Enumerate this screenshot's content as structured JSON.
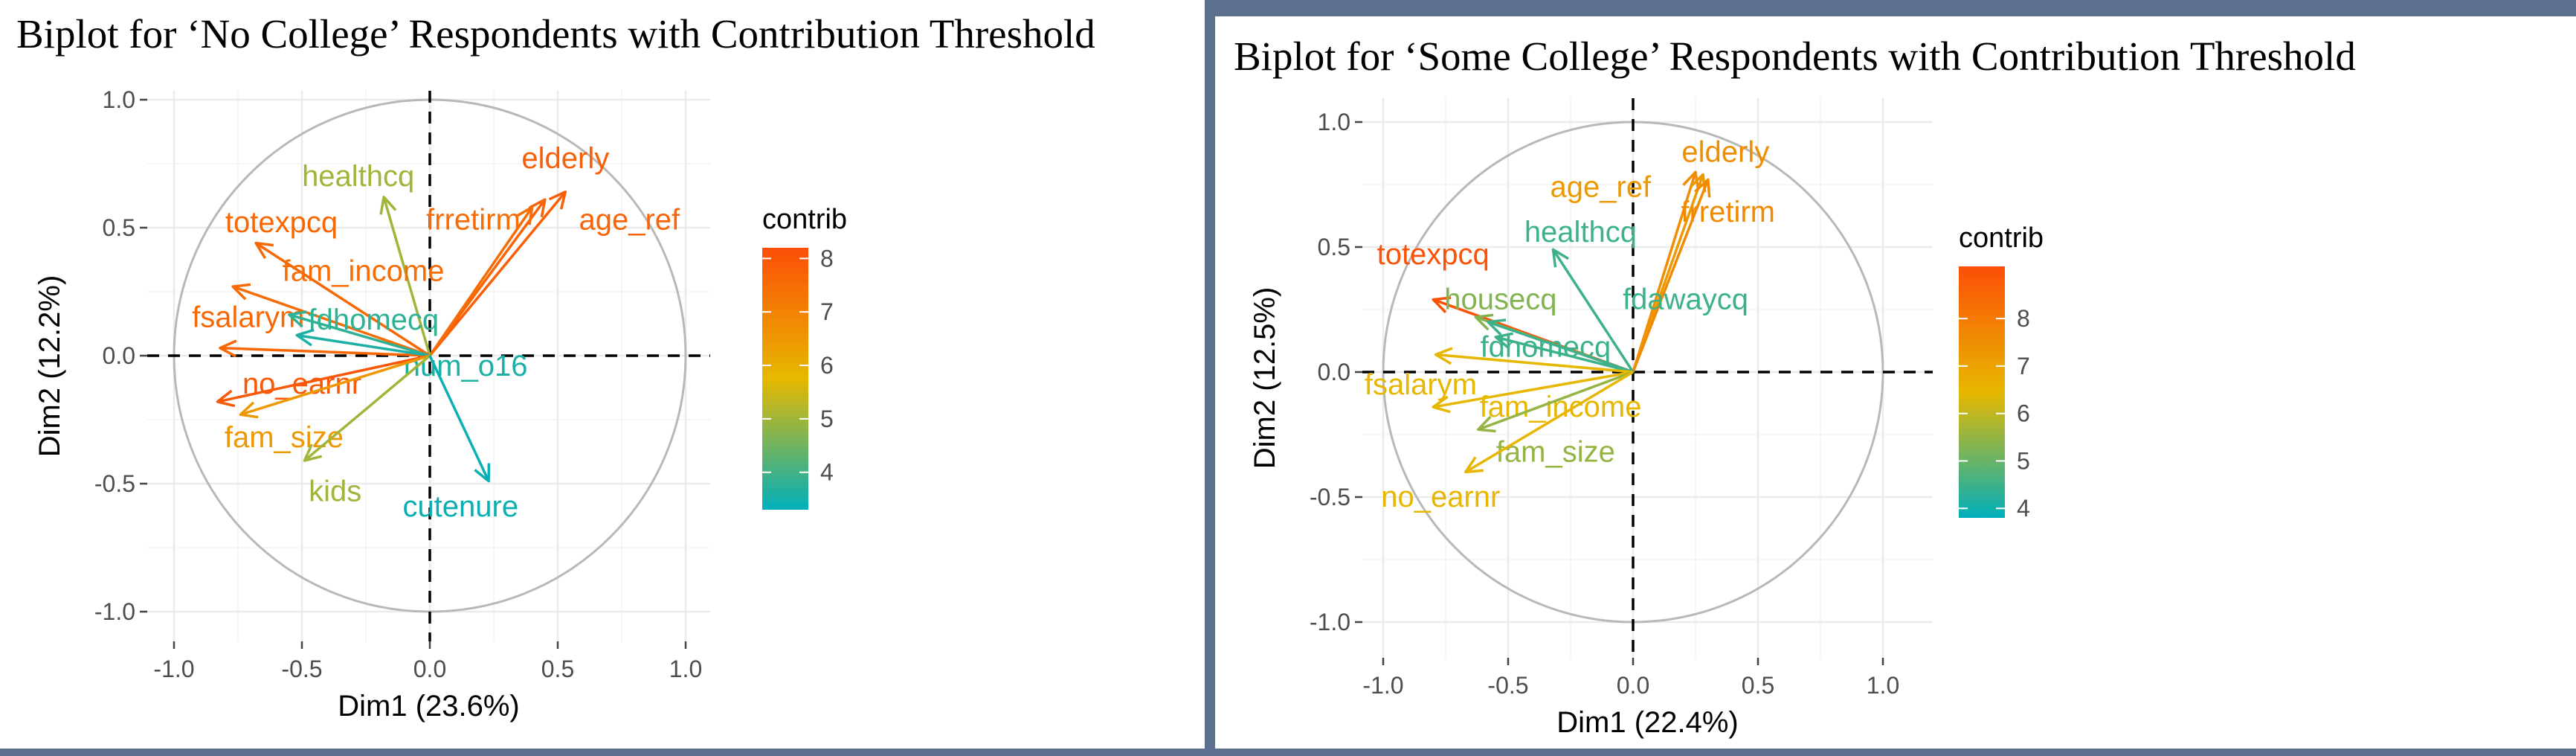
{
  "chart_data": [
    {
      "type": "biplot",
      "title": "Biplot for ‘No College’ Respondents with Contribution Threshold",
      "xlabel": "Dim1 (23.6%)",
      "ylabel": "Dim2 (12.2%)",
      "xlim": [
        -1.1,
        1.1
      ],
      "ylim": [
        -1.1,
        1.1
      ],
      "xticks": [
        "-1.0",
        "-0.5",
        "0.0",
        "0.5",
        "1.0"
      ],
      "yticks": [
        "-1.0",
        "-0.5",
        "0.0",
        "0.5",
        "1.0"
      ],
      "grid": true,
      "legend": {
        "title": "contrib",
        "position": "right",
        "range": [
          3.3,
          8.2
        ],
        "ticks": [
          "4",
          "5",
          "6",
          "7",
          "8"
        ]
      },
      "color_scale": [
        "#00afbb",
        "#e7b800",
        "#fc4e07"
      ],
      "vectors": [
        {
          "name": "elderly",
          "x": 0.53,
          "y": 0.64,
          "contrib": 7.8
        },
        {
          "name": "age_ref",
          "x": 0.45,
          "y": 0.61,
          "contrib": 7.7
        },
        {
          "name": "frretirm",
          "x": 0.4,
          "y": 0.58,
          "contrib": 7.5
        },
        {
          "name": "healthcq",
          "x": -0.18,
          "y": 0.62,
          "contrib": 5.0
        },
        {
          "name": "totexpcq",
          "x": -0.68,
          "y": 0.44,
          "contrib": 7.6
        },
        {
          "name": "fam_income",
          "x": -0.77,
          "y": 0.27,
          "contrib": 7.5
        },
        {
          "name": "fsalarym",
          "x": -0.82,
          "y": 0.03,
          "contrib": 7.6
        },
        {
          "name": "fdhomecq",
          "x": -0.55,
          "y": 0.16,
          "contrib": 3.8
        },
        {
          "name": "num_o16",
          "x": -0.52,
          "y": 0.08,
          "contrib": 3.6
        },
        {
          "name": "no_earnr",
          "x": -0.83,
          "y": -0.18,
          "contrib": 8.0
        },
        {
          "name": "fam_size",
          "x": -0.74,
          "y": -0.23,
          "contrib": 6.5
        },
        {
          "name": "kids",
          "x": -0.49,
          "y": -0.41,
          "contrib": 5.0
        },
        {
          "name": "cutenure",
          "x": 0.23,
          "y": -0.49,
          "contrib": 3.4
        }
      ]
    },
    {
      "type": "biplot",
      "title": "Biplot for ‘Some College’ Respondents with Contribution Threshold",
      "xlabel": "Dim1 (22.4%)",
      "ylabel": "Dim2 (12.5%)",
      "xlim": [
        -1.1,
        1.1
      ],
      "ylim": [
        -1.1,
        1.1
      ],
      "xticks": [
        "-1.0",
        "-0.5",
        "0.0",
        "0.5",
        "1.0"
      ],
      "yticks": [
        "-1.0",
        "-0.5",
        "0.0",
        "0.5",
        "1.0"
      ],
      "grid": true,
      "legend": {
        "title": "contrib",
        "position": "right",
        "range": [
          3.8,
          9.1
        ],
        "ticks": [
          "4",
          "5",
          "6",
          "7",
          "8"
        ]
      },
      "color_scale": [
        "#00afbb",
        "#e7b800",
        "#fc4e07"
      ],
      "vectors": [
        {
          "name": "elderly",
          "x": 0.25,
          "y": 0.8,
          "contrib": 7.5
        },
        {
          "name": "age_ref",
          "x": 0.28,
          "y": 0.79,
          "contrib": 7.2
        },
        {
          "name": "frretirm",
          "x": 0.3,
          "y": 0.77,
          "contrib": 7.6
        },
        {
          "name": "healthcq",
          "x": -0.32,
          "y": 0.49,
          "contrib": 4.5
        },
        {
          "name": "totexpcq",
          "x": -0.8,
          "y": 0.29,
          "contrib": 9.0
        },
        {
          "name": "housecq",
          "x": -0.63,
          "y": 0.22,
          "contrib": 5.3
        },
        {
          "name": "fdawaycq",
          "x": -0.58,
          "y": 0.2,
          "contrib": 4.5
        },
        {
          "name": "fdhomecq",
          "x": -0.55,
          "y": 0.14,
          "contrib": 4.5
        },
        {
          "name": "fsalarym",
          "x": -0.79,
          "y": 0.07,
          "contrib": 6.5
        },
        {
          "name": "fam_income",
          "x": -0.8,
          "y": -0.14,
          "contrib": 6.5
        },
        {
          "name": "fam_size",
          "x": -0.62,
          "y": -0.23,
          "contrib": 5.5
        },
        {
          "name": "no_earnr",
          "x": -0.67,
          "y": -0.4,
          "contrib": 6.5
        }
      ]
    }
  ]
}
